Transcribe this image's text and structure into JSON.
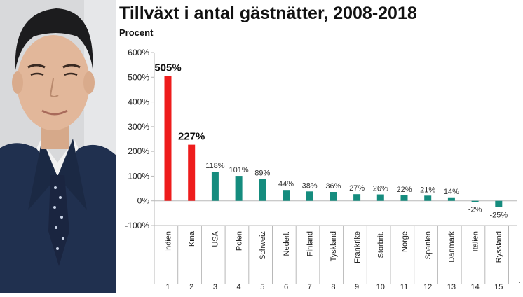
{
  "chart_data": {
    "type": "bar",
    "title": "Tillväxt i antal gästnätter, 2008-2018",
    "ylabel": "Procent",
    "categories": [
      "Indien",
      "Kina",
      "USA",
      "Polen",
      "Schweiz",
      "Nederl.",
      "Finland",
      "Tyskland",
      "Frankrike",
      "Storbrit.",
      "Norge",
      "Spanien",
      "Danmark",
      "Italien",
      "Ryssland"
    ],
    "ranks": [
      "1",
      "2",
      "3",
      "4",
      "5",
      "6",
      "7",
      "8",
      "9",
      "10",
      "11",
      "12",
      "13",
      "14",
      "15"
    ],
    "values": [
      505,
      227,
      118,
      101,
      89,
      44,
      38,
      36,
      27,
      26,
      22,
      21,
      14,
      -2,
      -25
    ],
    "value_labels": [
      "505%",
      "227%",
      "118%",
      "101%",
      "89%",
      "44%",
      "38%",
      "36%",
      "27%",
      "26%",
      "22%",
      "21%",
      "14%",
      "-2%",
      "-25%"
    ],
    "highlight": [
      true,
      true,
      false,
      false,
      false,
      false,
      false,
      false,
      false,
      false,
      false,
      false,
      false,
      false,
      false
    ],
    "yticks": [
      -100,
      0,
      100,
      200,
      300,
      400,
      500,
      600
    ],
    "ytick_labels": [
      "-100%",
      "0%",
      "100%",
      "200%",
      "300%",
      "400%",
      "500%",
      "600%"
    ],
    "ylim": [
      -100,
      600
    ],
    "trailing_mark": ".",
    "grid": false,
    "colors": {
      "highlight": "#ee1c1c",
      "default": "#158c7e",
      "axis": "#b8b8b8"
    }
  }
}
